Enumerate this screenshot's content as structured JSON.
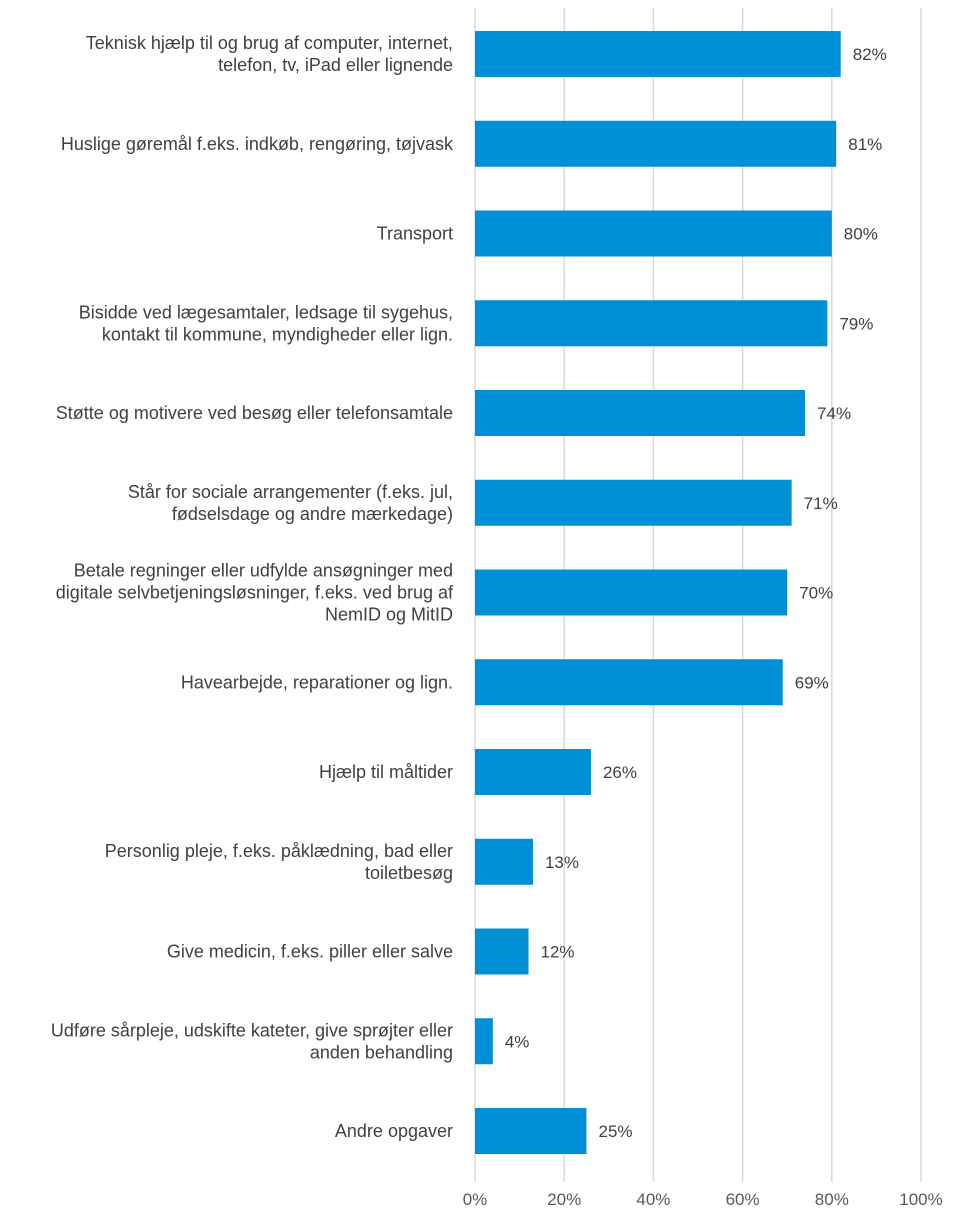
{
  "chart_data": {
    "type": "bar",
    "orientation": "horizontal",
    "title": "",
    "xlabel": "",
    "ylabel": "",
    "categories": [
      [
        "Teknisk hjælp til og brug af computer, internet,",
        "telefon, tv, iPad eller lignende"
      ],
      [
        "Huslige gøremål f.eks. indkøb, rengøring, tøjvask"
      ],
      [
        "Transport"
      ],
      [
        "Bisidde ved lægesamtaler, ledsage til sygehus,",
        "kontakt til kommune, myndigheder eller lign."
      ],
      [
        "Støtte og motivere ved besøg eller telefonsamtale"
      ],
      [
        "Står for sociale arrangementer (f.eks. jul,",
        "fødselsdage og andre mærkedage)"
      ],
      [
        "Betale regninger eller udfylde ansøgninger med",
        "digitale selvbetjeningsløsninger, f.eks. ved brug af",
        "NemID og MitID"
      ],
      [
        "Havearbejde, reparationer og lign."
      ],
      [
        "Hjælp til måltider"
      ],
      [
        "Personlig pleje, f.eks. påklædning, bad eller",
        "toiletbesøg"
      ],
      [
        "Give medicin, f.eks. piller eller salve"
      ],
      [
        "Udføre sårpleje, udskifte kateter, give sprøjter eller",
        "anden behandling"
      ],
      [
        "Andre opgaver"
      ]
    ],
    "values": [
      82,
      81,
      80,
      79,
      74,
      71,
      70,
      69,
      26,
      13,
      12,
      4,
      25
    ],
    "value_labels": [
      "82%",
      "81%",
      "80%",
      "79%",
      "74%",
      "71%",
      "70%",
      "69%",
      "26%",
      "13%",
      "12%",
      "4%",
      "25%"
    ],
    "xlim": [
      0,
      100
    ],
    "xticks": [
      0,
      20,
      40,
      60,
      80,
      100
    ],
    "xtick_labels": [
      "0%",
      "20%",
      "40%",
      "60%",
      "80%",
      "100%"
    ],
    "grid": "vertical",
    "legend": "none",
    "bar_color": "#0090d8"
  }
}
